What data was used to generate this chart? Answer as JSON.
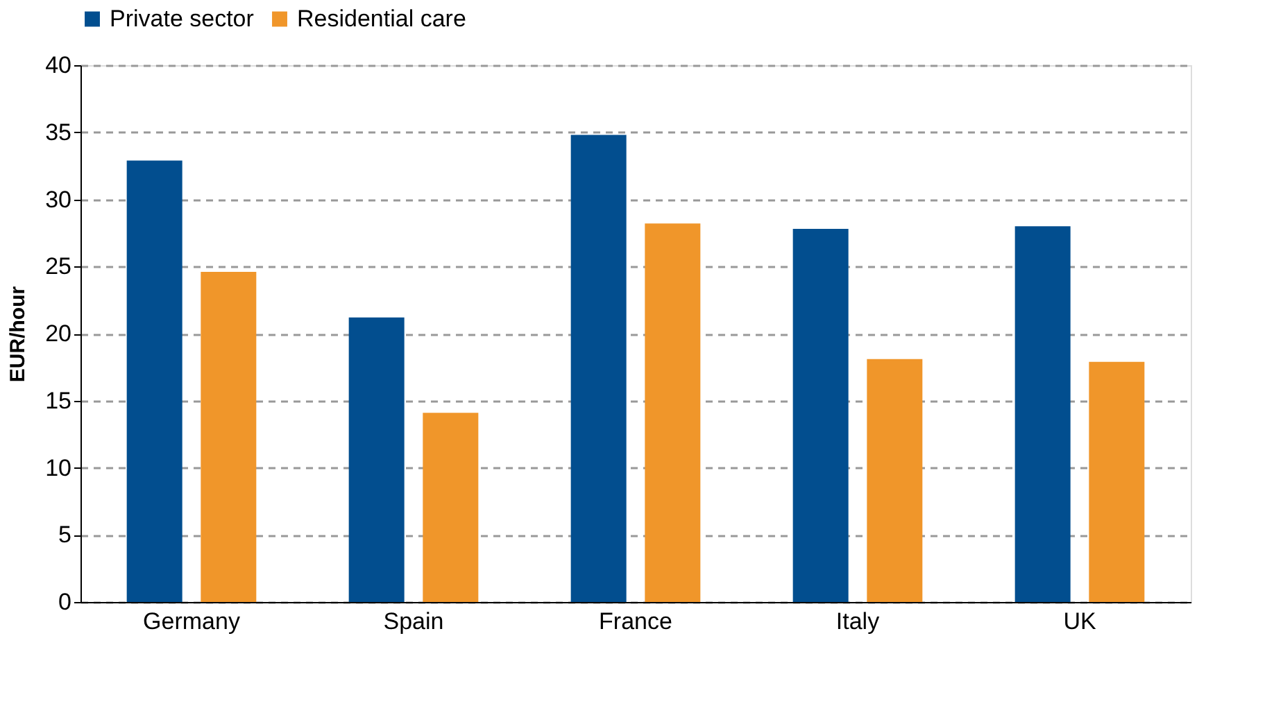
{
  "chart_data": {
    "type": "bar",
    "ylabel": "EUR/hour",
    "categories": [
      "Germany",
      "Spain",
      "France",
      "Italy",
      "UK"
    ],
    "series": [
      {
        "name": "Private sector",
        "color": "#024e8f",
        "values": [
          32.9,
          21.2,
          34.8,
          27.8,
          28.0
        ]
      },
      {
        "name": "Residential care",
        "color": "#f0962a",
        "values": [
          24.6,
          14.1,
          28.2,
          18.1,
          17.9
        ]
      }
    ],
    "ylim": [
      0,
      40
    ],
    "yticks": [
      0,
      5,
      10,
      15,
      20,
      25,
      30,
      35,
      40
    ],
    "grid": "y",
    "legend": "top"
  }
}
